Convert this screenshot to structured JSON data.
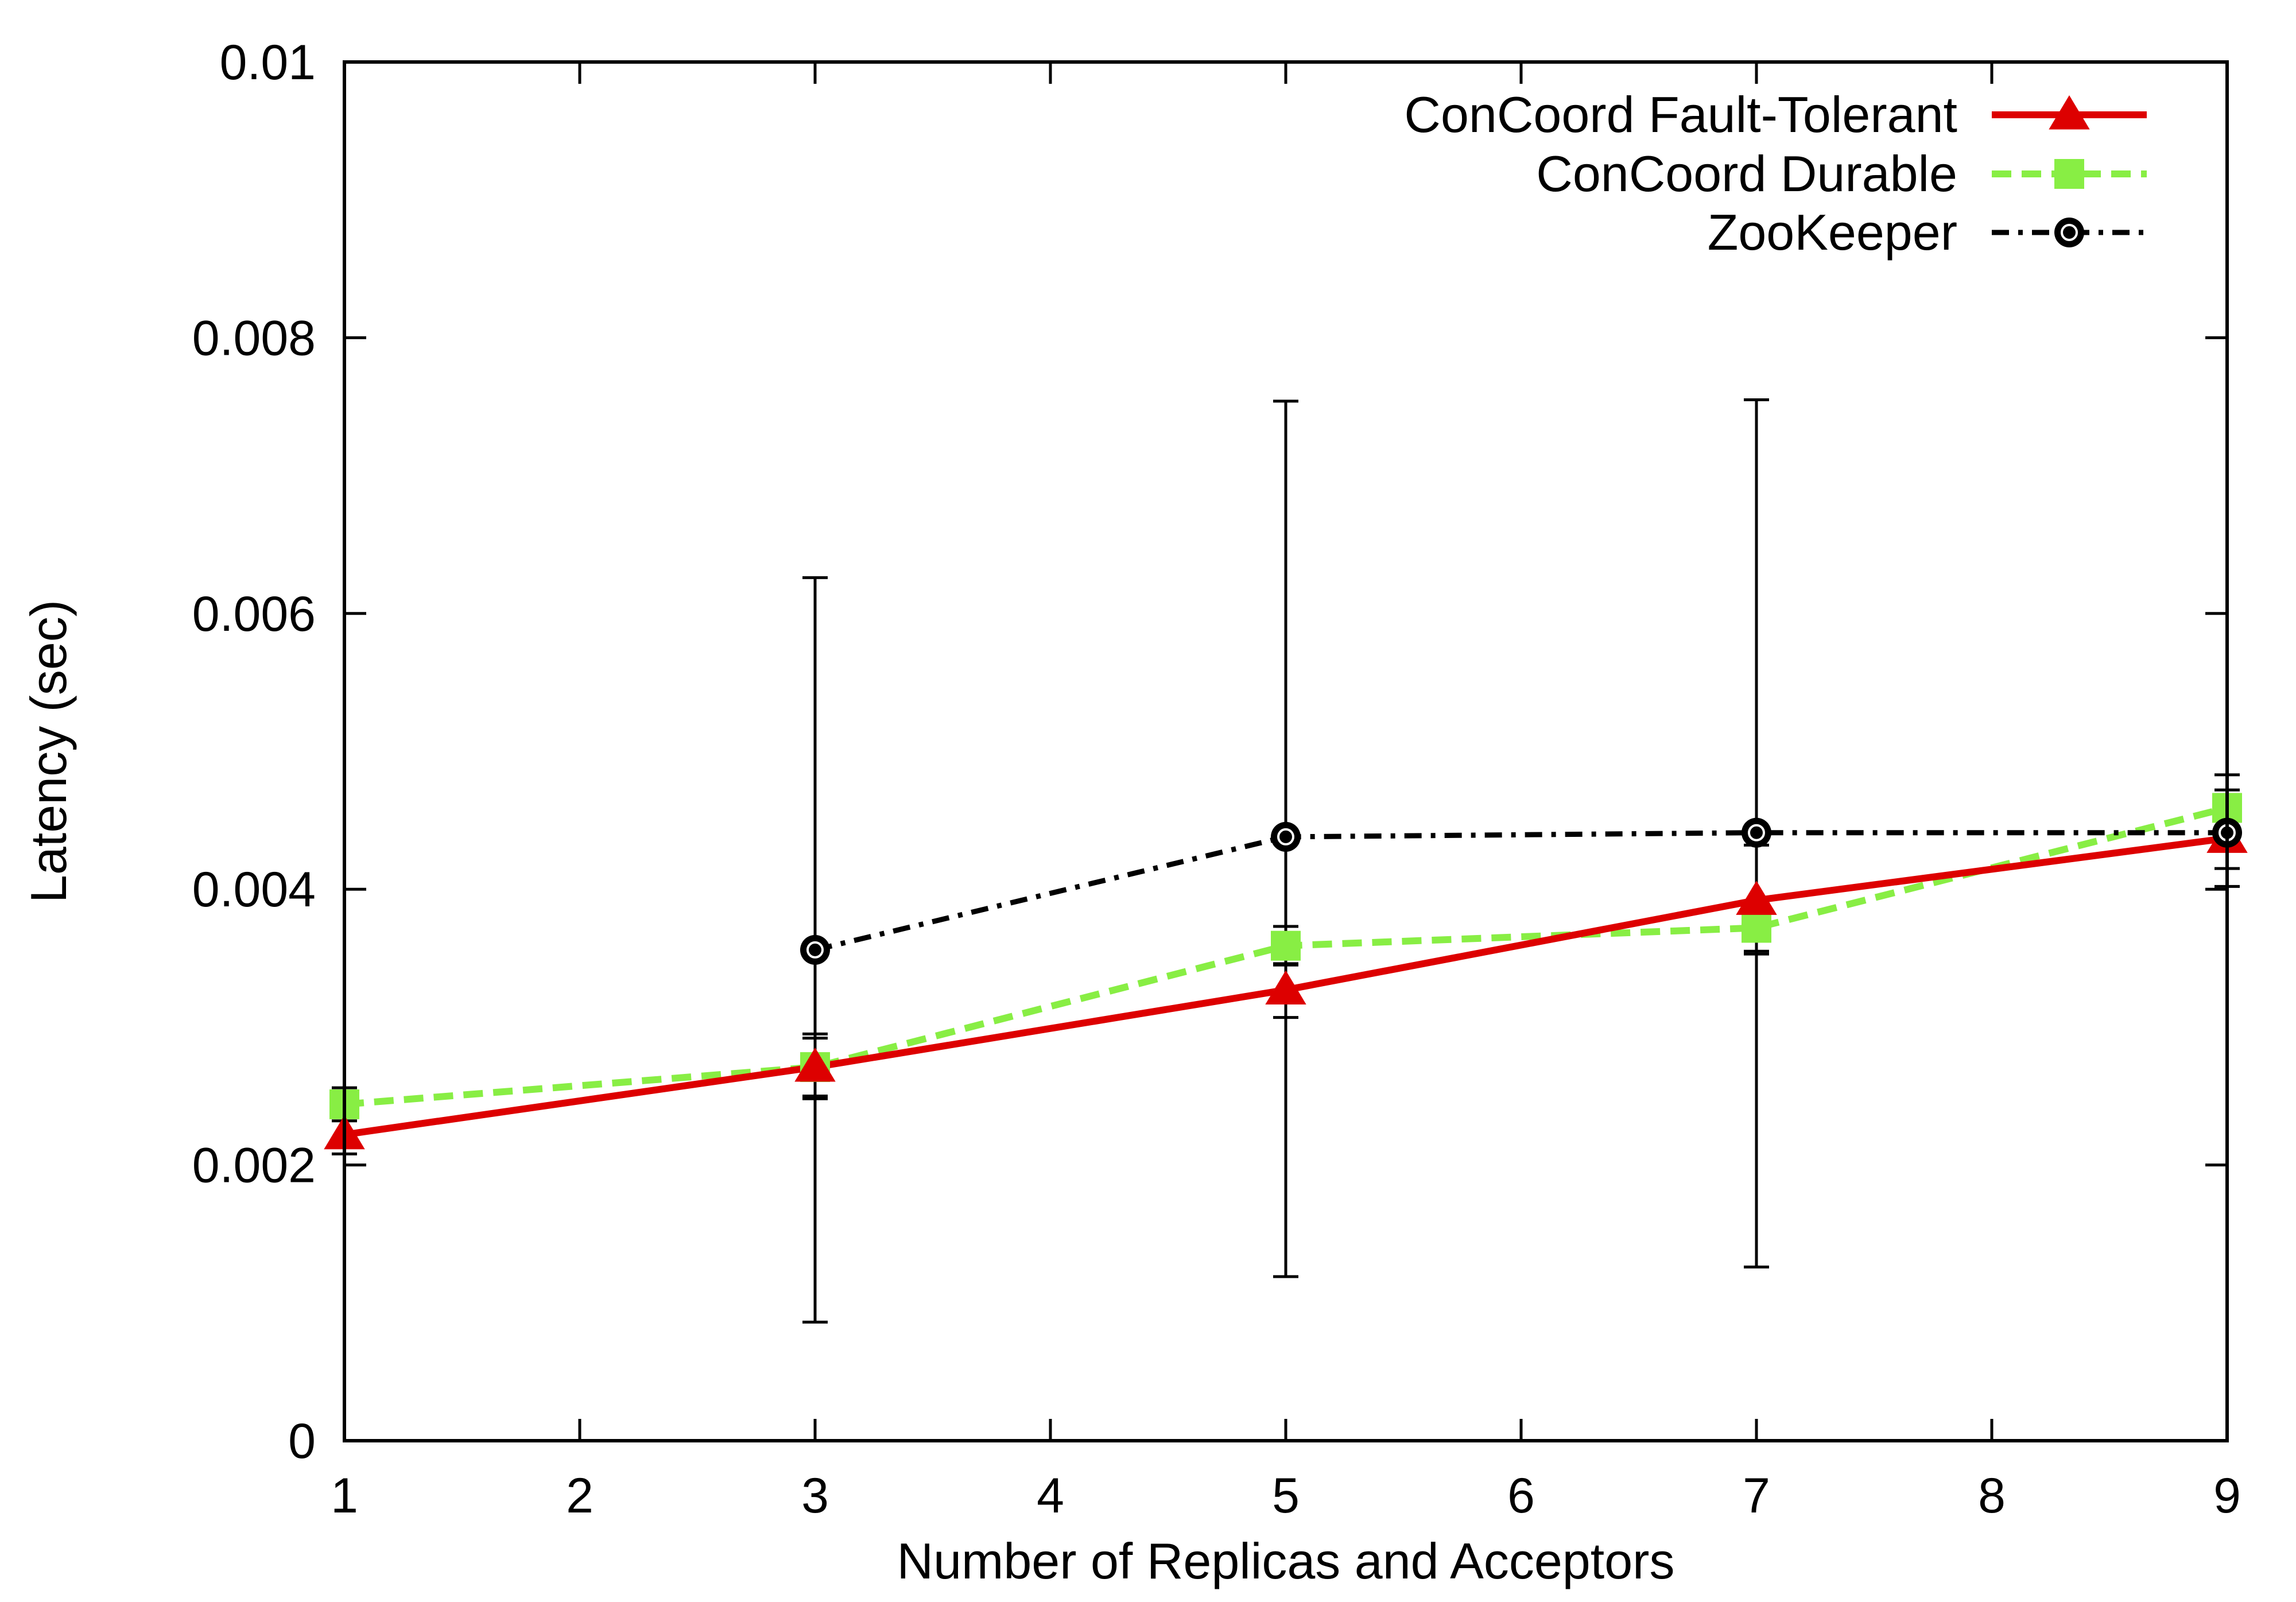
{
  "chart_data": {
    "type": "line",
    "title": "",
    "xlabel": "Number of Replicas and Acceptors",
    "ylabel": "Latency (sec)",
    "xlim": [
      1,
      9
    ],
    "ylim": [
      0,
      0.01
    ],
    "x_ticks": [
      "1",
      "2",
      "3",
      "4",
      "5",
      "6",
      "7",
      "8",
      "9"
    ],
    "y_ticks": [
      "0",
      "0.002",
      "0.004",
      "0.006",
      "0.008",
      "0.01"
    ],
    "grid": false,
    "legend_position": "top-right",
    "series": [
      {
        "name": "ConCoord Fault-Tolerant",
        "color": "#dd0000",
        "marker": "triangle",
        "line_style": "solid",
        "x": [
          1,
          3,
          5,
          7,
          9
        ],
        "y": [
          0.00222,
          0.00271,
          0.00327,
          0.00392,
          0.00437
        ],
        "err_low": [
          0.00208,
          0.00248,
          0.00307,
          0.00353,
          0.00402
        ],
        "err_high": [
          0.00236,
          0.00295,
          0.00346,
          0.00432,
          0.00472
        ]
      },
      {
        "name": "ConCoord Durable",
        "color": "#88ee44",
        "marker": "square",
        "line_style": "dashed",
        "x": [
          1,
          3,
          5,
          7,
          9
        ],
        "y": [
          0.00244,
          0.00271,
          0.00359,
          0.00372,
          0.00459
        ],
        "err_low": [
          0.00232,
          0.0025,
          0.00345,
          0.00355,
          0.00434
        ],
        "err_high": [
          0.00256,
          0.00292,
          0.00373,
          0.00389,
          0.00483
        ]
      },
      {
        "name": "ZooKeeper",
        "color": "#000000",
        "marker": "circle",
        "line_style": "dash-dot",
        "x": [
          3,
          5,
          7,
          9
        ],
        "y": [
          0.00356,
          0.00438,
          0.00441,
          0.00441
        ],
        "err_low": [
          0.00086,
          0.00119,
          0.00126,
          0.00415
        ],
        "err_high": [
          0.00626,
          0.00754,
          0.00755,
          0.00468
        ]
      }
    ]
  }
}
